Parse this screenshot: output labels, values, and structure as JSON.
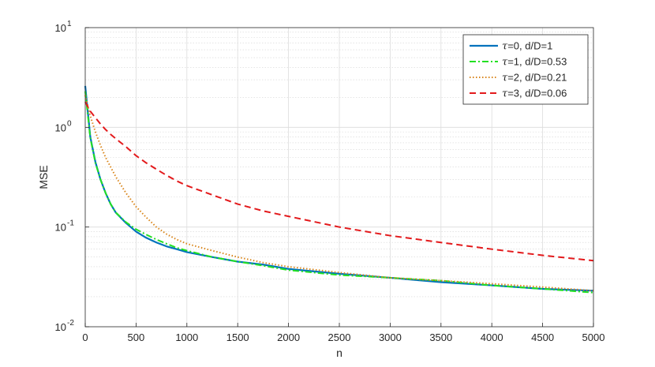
{
  "chart_data": {
    "type": "line",
    "xlabel": "n",
    "ylabel": "MSE",
    "xlim": [
      0,
      5000
    ],
    "ylim": [
      0.01,
      10
    ],
    "yscale": "log",
    "grid": true,
    "minor_grid": true,
    "legend_position": "top-right",
    "x_ticks": [
      "0",
      "500",
      "1000",
      "1500",
      "2000",
      "2500",
      "3000",
      "3500",
      "4000",
      "4500",
      "5000"
    ],
    "y_ticks": [
      {
        "base": "10",
        "exp": "-2"
      },
      {
        "base": "10",
        "exp": "-1"
      },
      {
        "base": "10",
        "exp": "0"
      },
      {
        "base": "10",
        "exp": "1"
      }
    ],
    "x": [
      0,
      50,
      100,
      150,
      200,
      250,
      300,
      400,
      500,
      600,
      700,
      800,
      900,
      1000,
      1250,
      1500,
      1750,
      2000,
      2500,
      3000,
      3500,
      4000,
      4500,
      5000
    ],
    "series": [
      {
        "tau": "τ",
        "label": "=0, d/D=1",
        "color": "#0072BD",
        "dash": "solid",
        "values": [
          2.6,
          0.8,
          0.45,
          0.3,
          0.22,
          0.17,
          0.14,
          0.11,
          0.09,
          0.078,
          0.07,
          0.064,
          0.06,
          0.056,
          0.05,
          0.045,
          0.042,
          0.038,
          0.034,
          0.031,
          0.028,
          0.026,
          0.024,
          0.023
        ]
      },
      {
        "tau": "τ",
        "label": "=1, d/D=0.53",
        "color": "#22E022",
        "dash": "dashdot",
        "values": [
          2.3,
          0.78,
          0.44,
          0.3,
          0.22,
          0.17,
          0.14,
          0.112,
          0.095,
          0.084,
          0.075,
          0.068,
          0.062,
          0.058,
          0.05,
          0.045,
          0.041,
          0.037,
          0.033,
          0.031,
          0.029,
          0.026,
          0.024,
          0.022
        ]
      },
      {
        "tau": "τ",
        "label": "=2, d/D=0.21",
        "color": "#D9861C",
        "dash": "dotted",
        "values": [
          2.1,
          1.3,
          0.9,
          0.66,
          0.5,
          0.4,
          0.32,
          0.22,
          0.16,
          0.125,
          0.1,
          0.085,
          0.075,
          0.068,
          0.058,
          0.05,
          0.044,
          0.04,
          0.035,
          0.031,
          0.029,
          0.027,
          0.025,
          0.023
        ]
      },
      {
        "tau": "τ",
        "label": "=3, d/D=0.06",
        "color": "#E31A1C",
        "dash": "dashed",
        "values": [
          1.8,
          1.45,
          1.25,
          1.08,
          0.95,
          0.85,
          0.77,
          0.64,
          0.52,
          0.44,
          0.38,
          0.33,
          0.29,
          0.26,
          0.21,
          0.17,
          0.145,
          0.128,
          0.1,
          0.082,
          0.07,
          0.06,
          0.052,
          0.046
        ]
      }
    ]
  }
}
